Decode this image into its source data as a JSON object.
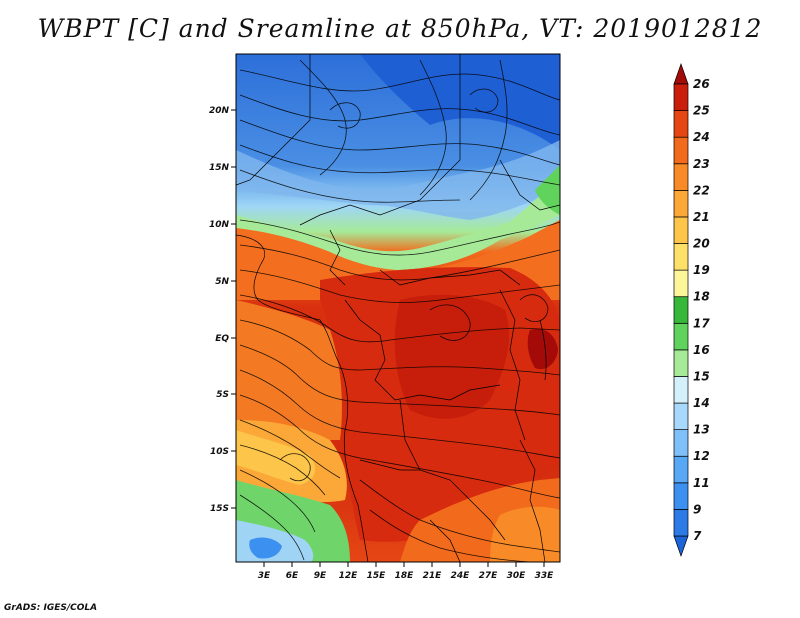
{
  "title": "WBPT [C] and Sreamline at 850hPa, VT: 2019012812",
  "credit": "GrADS: IGES/COLA",
  "map": {
    "lat_labels": [
      "20N",
      "15N",
      "10N",
      "5N",
      "EQ",
      "5S",
      "10S",
      "15S"
    ],
    "lon_labels": [
      "3E",
      "6E",
      "9E",
      "12E",
      "15E",
      "18E",
      "21E",
      "24E",
      "27E",
      "30E",
      "33E"
    ]
  },
  "colorbar": {
    "labels": [
      "7",
      "9",
      "11",
      "12",
      "13",
      "14",
      "15",
      "16",
      "17",
      "18",
      "19",
      "20",
      "21",
      "22",
      "23",
      "24",
      "25",
      "26"
    ],
    "colors": [
      "#1c64d8",
      "#2b7ae6",
      "#3c90f0",
      "#58a8f5",
      "#7fc0f8",
      "#a8d8fb",
      "#d4f0fb",
      "#a6ea98",
      "#5fd35c",
      "#38b83a",
      "#fdf59a",
      "#fde06a",
      "#fdc54a",
      "#fba838",
      "#f88a28",
      "#f26a1c",
      "#e64614",
      "#c91e0c",
      "#a30a08"
    ]
  }
}
